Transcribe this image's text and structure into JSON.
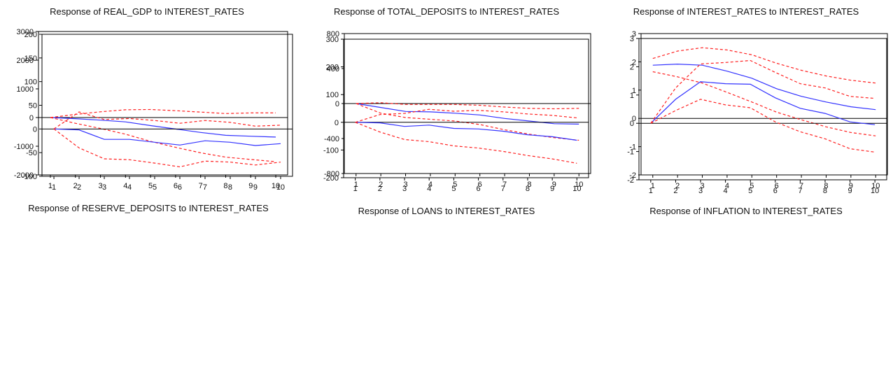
{
  "colors": {
    "response": "#3333ff",
    "band": "#ff2020",
    "axis": "#000000"
  },
  "chart_data": [
    {
      "type": "line",
      "title": "Response of REAL_GDP to INTEREST_RATES",
      "x": [
        1,
        2,
        3,
        4,
        5,
        6,
        7,
        8,
        9,
        10
      ],
      "ylim": [
        -2000,
        3000
      ],
      "yticks": [
        -2000,
        -1000,
        0,
        1000,
        2000,
        3000
      ],
      "series": [
        {
          "role": "response",
          "values": [
            0,
            -40,
            -90,
            -150,
            -280,
            -400,
            -520,
            -620,
            -650,
            -680
          ]
        },
        {
          "role": "upper",
          "values": [
            0,
            110,
            200,
            270,
            280,
            240,
            190,
            140,
            160,
            160
          ]
        },
        {
          "role": "lower",
          "values": [
            0,
            -200,
            -380,
            -580,
            -830,
            -1040,
            -1230,
            -1380,
            -1460,
            -1540
          ]
        }
      ]
    },
    {
      "type": "line",
      "title": "Response of TOTAL_DEPOSITS to INTEREST_RATES",
      "x": [
        1,
        2,
        3,
        4,
        5,
        6,
        7,
        8,
        9,
        10
      ],
      "ylim": [
        -800,
        800
      ],
      "yticks": [
        -800,
        -400,
        0,
        400,
        800
      ],
      "series": [
        {
          "role": "response",
          "values": [
            0,
            -45,
            -90,
            -95,
            -110,
            -130,
            -170,
            -200,
            -230,
            -235
          ]
        },
        {
          "role": "upper",
          "values": [
            0,
            10,
            -10,
            -10,
            -10,
            -20,
            -40,
            -55,
            -60,
            -55
          ]
        },
        {
          "role": "lower",
          "values": [
            0,
            -110,
            -160,
            -180,
            -200,
            -240,
            -300,
            -350,
            -390,
            -420
          ]
        }
      ]
    },
    {
      "type": "line",
      "title": "Response of INTEREST_RATES to INTEREST_RATES",
      "x": [
        1,
        2,
        3,
        4,
        5,
        6,
        7,
        8,
        9,
        10
      ],
      "ylim": [
        -2,
        3
      ],
      "yticks": [
        -2,
        -1,
        0,
        1,
        2,
        3
      ],
      "series": [
        {
          "role": "response",
          "values": [
            1.88,
            1.92,
            1.88,
            1.67,
            1.42,
            1.05,
            0.78,
            0.58,
            0.41,
            0.31
          ]
        },
        {
          "role": "upper",
          "values": [
            2.12,
            2.38,
            2.5,
            2.42,
            2.25,
            1.95,
            1.7,
            1.5,
            1.35,
            1.25
          ]
        },
        {
          "role": "lower",
          "values": [
            1.65,
            1.47,
            1.25,
            0.92,
            0.58,
            0.22,
            -0.05,
            -0.3,
            -0.5,
            -0.62
          ]
        }
      ]
    },
    {
      "type": "line",
      "title": "Response of RESERVE_DEPOSITS to INTEREST_RATES",
      "x": [
        1,
        2,
        3,
        4,
        5,
        6,
        7,
        8,
        9,
        10
      ],
      "ylim": [
        -100,
        200
      ],
      "yticks": [
        -100,
        -50,
        0,
        50,
        100,
        150,
        200
      ],
      "series": [
        {
          "role": "response",
          "values": [
            0,
            -2,
            -22,
            -22,
            -28,
            -34,
            -25,
            -28,
            -35,
            -31
          ]
        },
        {
          "role": "upper",
          "values": [
            0,
            36,
            20,
            22,
            18,
            12,
            18,
            14,
            6,
            8
          ]
        },
        {
          "role": "lower",
          "values": [
            0,
            -40,
            -63,
            -65,
            -72,
            -80,
            -68,
            -70,
            -76,
            -70
          ]
        }
      ]
    },
    {
      "type": "line",
      "title": "Response of LOANS to INTEREST_RATES",
      "x": [
        1,
        2,
        3,
        4,
        5,
        6,
        7,
        8,
        9,
        10
      ],
      "ylim": [
        -200,
        300
      ],
      "yticks": [
        -200,
        -100,
        0,
        100,
        200,
        300
      ],
      "series": [
        {
          "role": "response",
          "values": [
            0,
            -2,
            -15,
            -10,
            -22,
            -24,
            -32,
            -45,
            -52,
            -65
          ]
        },
        {
          "role": "upper",
          "values": [
            0,
            28,
            32,
            47,
            40,
            43,
            38,
            30,
            25,
            16
          ]
        },
        {
          "role": "lower",
          "values": [
            0,
            -35,
            -62,
            -70,
            -85,
            -93,
            -105,
            -120,
            -132,
            -148
          ]
        }
      ]
    },
    {
      "type": "line",
      "title": "Response of INFLATION to INTEREST_RATES",
      "x": [
        1,
        2,
        3,
        4,
        5,
        6,
        7,
        8,
        9,
        10
      ],
      "ylim": [
        -2,
        3
      ],
      "yticks": [
        -2,
        -1,
        0,
        1,
        2,
        3
      ],
      "series": [
        {
          "role": "response",
          "values": [
            0,
            0.85,
            1.47,
            1.4,
            1.38,
            0.9,
            0.53,
            0.35,
            0.05,
            -0.05
          ]
        },
        {
          "role": "upper",
          "values": [
            0,
            1.25,
            2.1,
            2.15,
            2.22,
            1.8,
            1.4,
            1.25,
            0.95,
            0.88
          ]
        },
        {
          "role": "lower",
          "values": [
            0,
            0.45,
            0.85,
            0.65,
            0.55,
            0.05,
            -0.3,
            -0.55,
            -0.9,
            -1.02
          ]
        }
      ]
    }
  ]
}
